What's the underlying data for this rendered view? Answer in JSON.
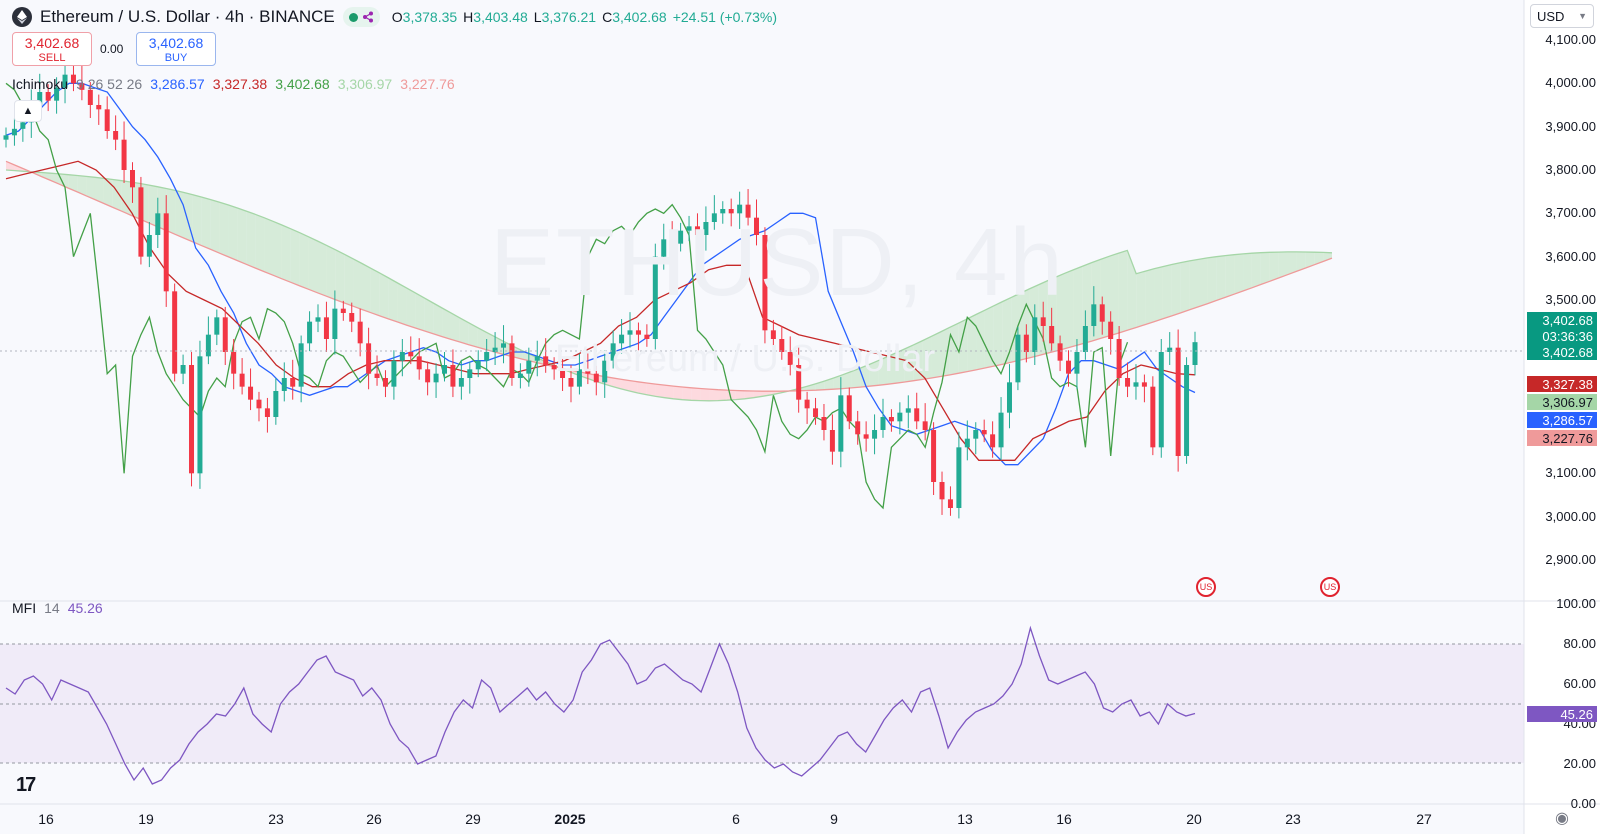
{
  "header": {
    "symbol_title": "Ethereum / U.S. Dollar · 4h · BINANCE",
    "ohlc": {
      "o_label": "O",
      "o": "3,378.35",
      "h_label": "H",
      "h": "3,403.48",
      "l_label": "L",
      "l": "3,376.21",
      "c_label": "C",
      "c": "3,402.68",
      "change": "+24.51 (+0.73%)"
    },
    "status_icons": [
      "market-open-dot-icon",
      "share-icon"
    ]
  },
  "trade": {
    "sell_price": "3,402.68",
    "sell_label": "SELL",
    "spread": "0.00",
    "buy_price": "3,402.68",
    "buy_label": "BUY"
  },
  "indicator": {
    "name": "Ichimoku",
    "params": "9 26 52 26",
    "v1": "3,286.57",
    "v2": "3,327.38",
    "v3": "3,402.68",
    "v4": "3,306.97",
    "v5": "3,227.76",
    "colors": {
      "v1": "#2962ff",
      "v2": "#c62828",
      "v3": "#43a047",
      "v4": "#a5d6a7",
      "v5": "#ef9a9a"
    }
  },
  "mfi": {
    "name": "MFI",
    "param": "14",
    "value": "45.26"
  },
  "currency": "USD",
  "watermark": {
    "main": "ETHUSD, 4h",
    "sub": "Ethereum / U.S. Dollar"
  },
  "price_axis": [
    "4,100.00",
    "4,000.00",
    "3,900.00",
    "3,800.00",
    "3,700.00",
    "3,600.00",
    "3,500.00",
    "3,100.00",
    "3,000.00",
    "2,900.00"
  ],
  "mfi_axis": [
    "100.00",
    "80.00",
    "60.00",
    "40.00",
    "20.00",
    "0.00"
  ],
  "price_tags": {
    "last": "3,402.68",
    "countdown": "03:36:36",
    "close": "3,402.68",
    "kijun": "3,327.38",
    "spanA": "3,306.97",
    "tenkan": "3,286.57",
    "spanB": "3,227.76",
    "mfi": "45.26"
  },
  "colors": {
    "up": "#22ab94",
    "down": "#f23645",
    "accent": "#2962ff",
    "mfi": "#7e57c2"
  },
  "time_axis": [
    "16",
    "19",
    "23",
    "26",
    "29",
    "2025",
    "6",
    "9",
    "13",
    "16",
    "20",
    "23",
    "27"
  ],
  "chart_data": {
    "type": "candlestick",
    "title": "Ethereum / U.S. Dollar · 4h · BINANCE",
    "ylim": [
      2900,
      4100
    ],
    "mfi_ylim": [
      0,
      100
    ],
    "mfi_bands": [
      20,
      80
    ],
    "closes": [
      3880,
      3895,
      3910,
      3950,
      3980,
      3960,
      3990,
      4020,
      4000,
      3985,
      3950,
      3940,
      3890,
      3870,
      3800,
      3760,
      3600,
      3650,
      3700,
      3520,
      3330,
      3350,
      3100,
      3370,
      3420,
      3460,
      3380,
      3330,
      3300,
      3270,
      3250,
      3230,
      3290,
      3320,
      3300,
      3400,
      3450,
      3460,
      3410,
      3480,
      3470,
      3450,
      3400,
      3330,
      3320,
      3300,
      3360,
      3380,
      3370,
      3340,
      3310,
      3330,
      3350,
      3300,
      3320,
      3340,
      3360,
      3380,
      3390,
      3400,
      3320,
      3330,
      3360,
      3370,
      3350,
      3340,
      3320,
      3300,
      3340,
      3330,
      3310,
      3360,
      3400,
      3420,
      3430,
      3420,
      3410,
      3600,
      3640,
      3630,
      3660,
      3670,
      3650,
      3680,
      3700,
      3710,
      3700,
      3720,
      3690,
      3650,
      3430,
      3410,
      3380,
      3350,
      3270,
      3250,
      3230,
      3200,
      3150,
      3280,
      3220,
      3190,
      3180,
      3200,
      3230,
      3220,
      3240,
      3250,
      3220,
      3200,
      3080,
      3040,
      3020,
      3160,
      3180,
      3200,
      3190,
      3160,
      3240,
      3310,
      3420,
      3380,
      3460,
      3440,
      3400,
      3360,
      3330,
      3380,
      3440,
      3490,
      3450,
      3410,
      3320,
      3300,
      3310,
      3300,
      3160,
      3380,
      3390,
      3140,
      3350,
      3402.68
    ],
    "tenkan": [
      3880,
      3890,
      3920,
      3950,
      3980,
      4000,
      4000,
      3990,
      3980,
      3940,
      3900,
      3870,
      3830,
      3780,
      3720,
      3620,
      3580,
      3520,
      3470,
      3400,
      3350,
      3330,
      3300,
      3290,
      3280,
      3290,
      3300,
      3300,
      3320,
      3340,
      3360,
      3370,
      3380,
      3390,
      3380,
      3360,
      3350,
      3360,
      3360,
      3370,
      3380,
      3380,
      3370,
      3360,
      3350,
      3350,
      3360,
      3370,
      3380,
      3390,
      3400,
      3420,
      3460,
      3500,
      3540,
      3580,
      3600,
      3620,
      3640,
      3650,
      3660,
      3680,
      3700,
      3700,
      3690,
      3520,
      3450,
      3380,
      3300,
      3250,
      3210,
      3200,
      3190,
      3200,
      3210,
      3220,
      3210,
      3200,
      3150,
      3120,
      3120,
      3150,
      3180,
      3250,
      3330,
      3360,
      3360,
      3350,
      3340,
      3360,
      3380,
      3340,
      3320,
      3300,
      3286.57
    ],
    "kijun": [
      3780,
      3790,
      3800,
      3810,
      3820,
      3800,
      3760,
      3700,
      3620,
      3560,
      3520,
      3500,
      3480,
      3440,
      3400,
      3350,
      3320,
      3300,
      3300,
      3330,
      3350,
      3360,
      3360,
      3360,
      3350,
      3340,
      3330,
      3330,
      3330,
      3340,
      3350,
      3360,
      3380,
      3400,
      3440,
      3460,
      3500,
      3520,
      3540,
      3570,
      3580,
      3580,
      3460,
      3440,
      3420,
      3410,
      3400,
      3390,
      3380,
      3370,
      3360,
      3320,
      3250,
      3180,
      3130,
      3130,
      3130,
      3180,
      3200,
      3220,
      3230,
      3290,
      3330,
      3350,
      3340,
      3330,
      3327.38
    ],
    "mfi": [
      58,
      55,
      62,
      64,
      60,
      52,
      62,
      60,
      58,
      56,
      48,
      40,
      30,
      20,
      12,
      18,
      10,
      12,
      18,
      22,
      30,
      36,
      40,
      45,
      44,
      50,
      58,
      45,
      40,
      36,
      50,
      56,
      60,
      66,
      72,
      74,
      66,
      64,
      62,
      54,
      58,
      52,
      40,
      32,
      28,
      20,
      22,
      24,
      36,
      46,
      52,
      48,
      62,
      58,
      46,
      50,
      54,
      58,
      52,
      56,
      50,
      46,
      52,
      66,
      72,
      80,
      82,
      76,
      70,
      60,
      62,
      68,
      70,
      66,
      62,
      60,
      56,
      68,
      80,
      70,
      56,
      38,
      28,
      22,
      18,
      20,
      16,
      14,
      18,
      22,
      28,
      34,
      36,
      30,
      26,
      34,
      42,
      48,
      52,
      46,
      56,
      58,
      44,
      28,
      36,
      42,
      46,
      48,
      50,
      54,
      60,
      70,
      88,
      74,
      62,
      60,
      62,
      64,
      66,
      60,
      48,
      46,
      50,
      52,
      44,
      46,
      40,
      50,
      46,
      44,
      45.26
    ]
  }
}
